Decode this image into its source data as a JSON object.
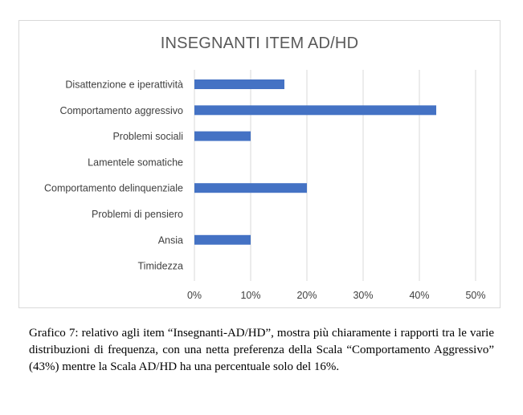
{
  "chart_data": {
    "type": "bar",
    "orientation": "horizontal",
    "title": "INSEGNANTI ITEM AD/HD",
    "categories": [
      "Disattenzione e iperattività",
      "Comportamento aggressivo",
      "Problemi sociali",
      "Lamentele somatiche",
      "Comportamento delinquenziale",
      "Problemi di pensiero",
      "Ansia",
      "Timidezza"
    ],
    "values": [
      16,
      43,
      10,
      0,
      20,
      0,
      10,
      0
    ],
    "xlim": [
      0,
      50
    ],
    "xticks": [
      "0%",
      "10%",
      "20%",
      "30%",
      "40%",
      "50%"
    ],
    "xlabel": "",
    "ylabel": "",
    "grid": "vertical",
    "legend": "none",
    "bar_color": "#4472c4",
    "grid_color": "#d9d9d9"
  },
  "caption": "Grafico 7: relativo agli item “Insegnanti-AD/HD”, mostra più chiaramente i rapporti tra le varie distribuzioni di frequenza, con una netta preferenza della Scala “Comportamento Aggressivo” (43%) mentre la Scala AD/HD ha una percentuale solo del 16%."
}
